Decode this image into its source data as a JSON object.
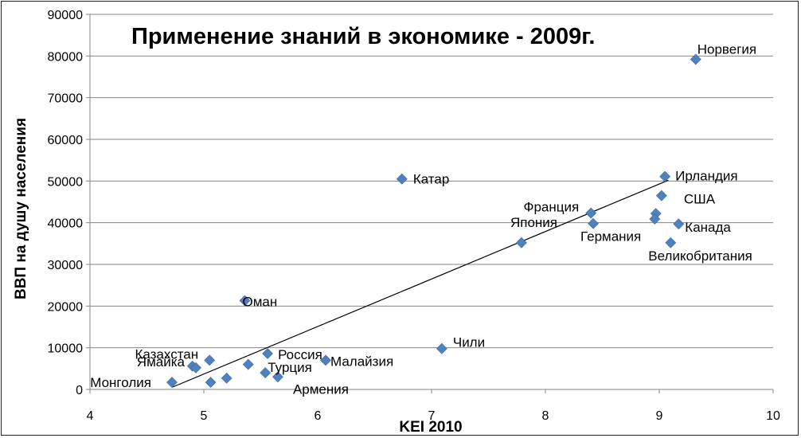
{
  "chart_data": {
    "type": "scatter",
    "title": "Применение знаний в экономике - 2009г.",
    "xlabel": "KEI 2010",
    "ylabel": "ВВП на душу населения",
    "xlim": [
      4,
      10
    ],
    "ylim": [
      0,
      90000
    ],
    "x_ticks": [
      "4",
      "5",
      "6",
      "7",
      "8",
      "9",
      "10"
    ],
    "y_ticks": [
      "0",
      "10000",
      "20000",
      "30000",
      "40000",
      "50000",
      "60000",
      "70000",
      "80000",
      "90000"
    ],
    "grid": "horizontal",
    "legend": "none",
    "marker_color": "#4F81BD",
    "trendline": {
      "type": "linear",
      "x": [
        4.72,
        9.08
      ],
      "y": [
        500,
        50200
      ]
    },
    "points": [
      {
        "x": 9.32,
        "y": 79200,
        "label": "Норвегия"
      },
      {
        "x": 9.05,
        "y": 51100,
        "label": "Ирландия"
      },
      {
        "x": 9.02,
        "y": 46500,
        "label": "США"
      },
      {
        "x": 8.97,
        "y": 42200,
        "label": ""
      },
      {
        "x": 8.96,
        "y": 40900,
        "label": ""
      },
      {
        "x": 9.17,
        "y": 39700,
        "label": "Канада"
      },
      {
        "x": 9.1,
        "y": 35200,
        "label": "Великобритания"
      },
      {
        "x": 8.4,
        "y": 42300,
        "label": "Франция"
      },
      {
        "x": 8.42,
        "y": 39800,
        "label": "Германия"
      },
      {
        "x": 7.79,
        "y": 35200,
        "label": "Япония"
      },
      {
        "x": 6.74,
        "y": 50500,
        "label": "Катар"
      },
      {
        "x": 7.09,
        "y": 9800,
        "label": "Чили"
      },
      {
        "x": 5.36,
        "y": 21300,
        "label": "Оман"
      },
      {
        "x": 5.56,
        "y": 8600,
        "label": "Россия"
      },
      {
        "x": 6.07,
        "y": 7000,
        "label": "Малайзия"
      },
      {
        "x": 5.39,
        "y": 6000,
        "label": ""
      },
      {
        "x": 5.54,
        "y": 4000,
        "label": "Турция"
      },
      {
        "x": 5.65,
        "y": 3000,
        "label": "Армения"
      },
      {
        "x": 5.05,
        "y": 7000,
        "label": "Казахстан"
      },
      {
        "x": 4.9,
        "y": 5600,
        "label": ""
      },
      {
        "x": 4.93,
        "y": 5200,
        "label": "Ямайка"
      },
      {
        "x": 5.2,
        "y": 2700,
        "label": ""
      },
      {
        "x": 5.06,
        "y": 1700,
        "label": ""
      },
      {
        "x": 4.72,
        "y": 1700,
        "label": "Монголия"
      }
    ]
  }
}
